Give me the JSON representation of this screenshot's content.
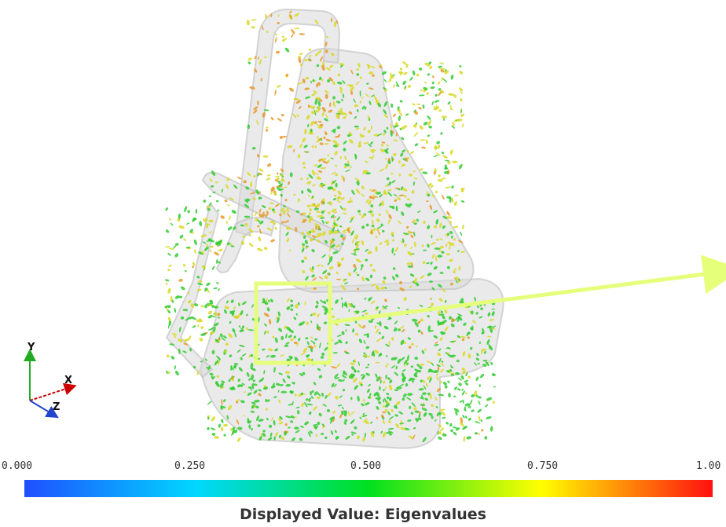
{
  "axes": {
    "x": "X",
    "y": "Y",
    "z": "Z"
  },
  "colorbar": {
    "ticks": [
      "0.000",
      "0.250",
      "0.500",
      "0.750",
      "1.00"
    ],
    "title": "Displayed Value: Eigenvalues",
    "colors": [
      "#1f4fff",
      "#00d8ff",
      "#00e020",
      "#ffff00",
      "#ff1010"
    ]
  },
  "colors": {
    "shell": "#d9d9d9",
    "highlight_box": "#e6ff7a",
    "glyph_green": "#33cc33",
    "glyph_yellow": "#d9d92a",
    "glyph_orange": "#e69a2a"
  }
}
